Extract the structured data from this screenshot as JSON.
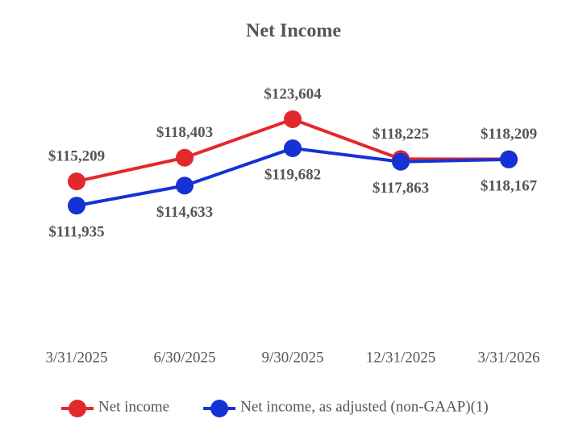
{
  "chart_data": {
    "type": "line",
    "title": "Net Income",
    "categories": [
      "3/31/2025",
      "6/30/2025",
      "9/30/2025",
      "12/31/2025",
      "3/31/2026"
    ],
    "series": [
      {
        "name": "Net income",
        "color": "#e3282b",
        "values": [
          115209,
          118403,
          123604,
          118225,
          118209
        ],
        "value_labels": [
          "$115,209",
          "$118,403",
          "$123,604",
          "$118,225",
          "$118,209"
        ]
      },
      {
        "name": "Net income, as adjusted (non-GAAP)(1)",
        "color": "#1432d6",
        "values": [
          111935,
          114633,
          119682,
          117863,
          118167
        ],
        "value_labels": [
          "$111,935",
          "$114,633",
          "$119,682",
          "$117,863",
          "$118,167"
        ]
      }
    ],
    "ylim": [
      94000,
      131000
    ]
  }
}
